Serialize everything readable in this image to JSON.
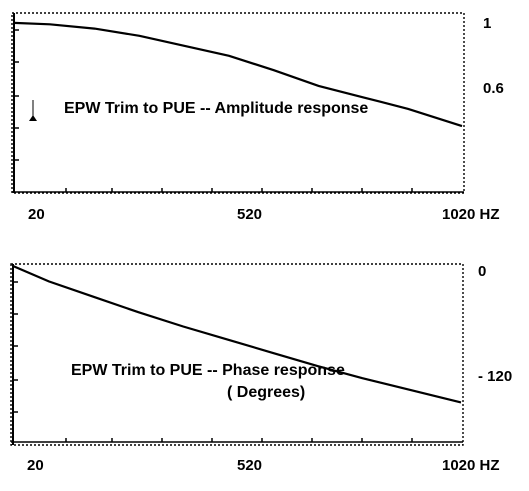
{
  "colors": {
    "background": "#ffffff",
    "ink": "#000000"
  },
  "freq_unit": "HZ",
  "chart_data": [
    {
      "type": "line",
      "title": "EPW Trim to PUE  -- Amplitude response",
      "subtitle": "",
      "xlabel": "",
      "ylabel": "",
      "x_unit_label": "HZ",
      "x_ticks": [
        "20",
        "520",
        "1020 HZ"
      ],
      "y_ticks": [
        "1",
        "0.6"
      ],
      "xlim": [
        20,
        1020
      ],
      "ylim": [
        0.4,
        1.0
      ],
      "grid": false,
      "series": [
        {
          "x": [
            20,
            100,
            200,
            300,
            400,
            500,
            600,
            700,
            800,
            900,
            1020
          ],
          "y": [
            0.99,
            0.985,
            0.97,
            0.945,
            0.91,
            0.875,
            0.825,
            0.77,
            0.73,
            0.69,
            0.63
          ]
        }
      ]
    },
    {
      "type": "line",
      "title": "EPW Trim to PUE  -- Phase response",
      "subtitle": "( Degrees)",
      "xlabel": "",
      "ylabel": "",
      "x_unit_label": "HZ",
      "x_ticks": [
        "20",
        "520",
        "1020 HZ"
      ],
      "y_ticks": [
        "0",
        "- 120"
      ],
      "xlim": [
        20,
        1020
      ],
      "ylim": [
        -160,
        0
      ],
      "grid": false,
      "series": [
        {
          "x": [
            20,
            100,
            200,
            300,
            400,
            500,
            600,
            700,
            800,
            900,
            1020
          ],
          "y": [
            0,
            -14,
            -28,
            -42,
            -55,
            -67,
            -79,
            -91,
            -102,
            -112,
            -124
          ]
        }
      ]
    }
  ]
}
